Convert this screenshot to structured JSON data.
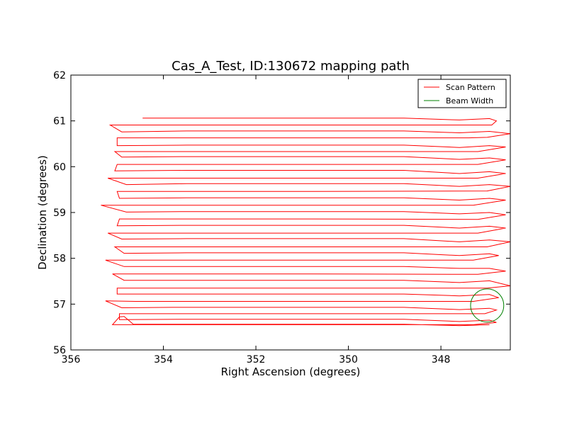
{
  "chart_data": {
    "type": "line",
    "title": "Cas_A_Test, ID:130672 mapping path",
    "xlabel": "Right Ascension (degrees)",
    "ylabel": "Declination (degrees)",
    "xlim": [
      356,
      346.5
    ],
    "ylim": [
      56,
      62
    ],
    "x_axis_inverted": true,
    "xticks": [
      356,
      354,
      352,
      350,
      348
    ],
    "yticks": [
      56,
      57,
      58,
      59,
      60,
      61,
      62
    ],
    "xtick_labels": [
      "356",
      "354",
      "352",
      "350",
      "348"
    ],
    "ytick_labels": [
      "56",
      "57",
      "58",
      "59",
      "60",
      "61",
      "62"
    ],
    "grid": false,
    "legend": {
      "placement": "top-right",
      "entries": [
        "Scan Pattern",
        "Beam Width"
      ]
    },
    "series": [
      {
        "name": "Scan Pattern",
        "color": "#ff0000",
        "x": [
          354.45,
          350.8,
          348.8,
          347.6,
          346.95,
          346.8,
          346.9,
          347.4,
          350.8,
          354.7,
          355.15,
          354.9,
          353.5,
          350.8,
          348.8,
          347.6,
          346.95,
          346.5,
          347.0,
          347.4,
          350.8,
          354.6,
          355.0,
          355.0,
          353.5,
          350.8,
          348.8,
          347.6,
          346.95,
          346.6,
          347.2,
          350.8,
          354.7,
          355.05,
          354.9,
          353.5,
          350.8,
          348.8,
          347.6,
          346.95,
          346.6,
          347.2,
          350.8,
          354.6,
          355.0,
          355.05,
          353.5,
          350.8,
          348.8,
          347.6,
          346.95,
          346.6,
          347.2,
          350.8,
          354.7,
          355.2,
          354.8,
          353.5,
          350.8,
          348.8,
          347.6,
          346.95,
          346.5,
          347.0,
          350.8,
          354.6,
          355.0,
          354.95,
          353.5,
          350.8,
          348.8,
          347.6,
          346.95,
          346.6,
          347.3,
          350.8,
          354.7,
          355.35,
          354.8,
          353.5,
          350.8,
          348.8,
          347.6,
          346.95,
          346.6,
          347.2,
          350.8,
          354.6,
          354.95,
          355.0,
          353.5,
          350.8,
          348.8,
          347.6,
          346.95,
          346.6,
          347.2,
          350.8,
          354.7,
          355.2,
          354.9,
          353.5,
          350.8,
          348.8,
          347.6,
          346.95,
          346.5,
          347.0,
          350.8,
          354.6,
          355.05,
          354.85,
          353.5,
          350.8,
          348.8,
          347.6,
          346.95,
          346.75,
          347.3,
          354.7,
          355.25,
          354.85,
          354.7,
          350.8,
          348.8,
          347.6,
          347.0
        ],
        "y": [
          61.06,
          61.06,
          61.06,
          61.02,
          61.05,
          61.0,
          60.91,
          60.91,
          60.91,
          60.91,
          60.91,
          60.76,
          60.78,
          60.78,
          60.78,
          60.74,
          60.77,
          60.72,
          60.64,
          60.63,
          60.63,
          60.63,
          60.63,
          60.46,
          60.47,
          60.47,
          60.47,
          60.42,
          60.46,
          60.43,
          60.33,
          60.33,
          60.33,
          60.33,
          60.21,
          60.22,
          60.22,
          60.22,
          60.16,
          60.19,
          60.15,
          60.05,
          60.05,
          60.05,
          60.05,
          59.91,
          59.92,
          59.92,
          59.92,
          59.85,
          59.89,
          59.85,
          59.75,
          59.75,
          59.75,
          59.75,
          59.61,
          59.63,
          59.63,
          59.63,
          59.57,
          59.61,
          59.57,
          59.47,
          59.46,
          59.46,
          59.46,
          59.31,
          59.32,
          59.32,
          59.32,
          59.27,
          59.31,
          59.27,
          59.16,
          59.16,
          59.16,
          59.16,
          59.01,
          59.02,
          59.02,
          59.02,
          58.97,
          59.0,
          58.95,
          58.85,
          58.86,
          58.86,
          58.86,
          58.71,
          58.72,
          58.72,
          58.72,
          58.66,
          58.7,
          58.66,
          58.55,
          58.55,
          58.55,
          58.55,
          58.42,
          58.43,
          58.43,
          58.43,
          58.36,
          58.4,
          58.36,
          58.25,
          58.25,
          58.25,
          58.25,
          58.11,
          58.12,
          58.12,
          58.12,
          58.06,
          58.1,
          58.06,
          57.96,
          57.96,
          57.96,
          57.82,
          57.82,
          57.82,
          57.82,
          57.78,
          57.78
        ]
      },
      {
        "name": "Beam Width",
        "color": "#008000",
        "shape": "circle",
        "center": [
          347.0,
          56.97
        ],
        "radius_deg": 0.36
      }
    ]
  },
  "extra_path": {
    "x": [
      347.0,
      346.95,
      346.6,
      347.2,
      350.8,
      354.7,
      355.1,
      354.85,
      353.5,
      350.8,
      348.8,
      347.6,
      346.95,
      346.5,
      347.0,
      350.8,
      354.6,
      355.0,
      355.0,
      353.5,
      350.8,
      348.8,
      347.6,
      346.95,
      346.75,
      347.3,
      350.8,
      354.6,
      355.25,
      354.9,
      353.8,
      350.8,
      348.8,
      347.6,
      346.95,
      346.8,
      347.05,
      350.8,
      354.7,
      354.95,
      354.95,
      353.5,
      350.8,
      348.8,
      347.6,
      346.95,
      346.8,
      347.3,
      350.8,
      354.7,
      355.1,
      354.95,
      354.85,
      354.65,
      350.8,
      348.8,
      347.6,
      346.95
    ],
    "y": [
      57.78,
      57.78,
      57.72,
      57.65,
      57.66,
      57.66,
      57.66,
      57.52,
      57.52,
      57.52,
      57.52,
      57.47,
      57.51,
      57.4,
      57.35,
      57.35,
      57.35,
      57.35,
      57.22,
      57.22,
      57.22,
      57.22,
      57.18,
      57.21,
      57.14,
      57.06,
      57.06,
      57.06,
      57.07,
      56.92,
      56.93,
      56.93,
      56.93,
      56.88,
      56.91,
      56.87,
      56.79,
      56.79,
      56.79,
      56.79,
      56.66,
      56.67,
      56.67,
      56.67,
      56.62,
      56.65,
      56.6,
      56.55,
      56.55,
      56.55,
      56.55,
      56.72,
      56.73,
      56.56,
      56.56,
      56.56,
      56.53,
      56.55
    ]
  }
}
